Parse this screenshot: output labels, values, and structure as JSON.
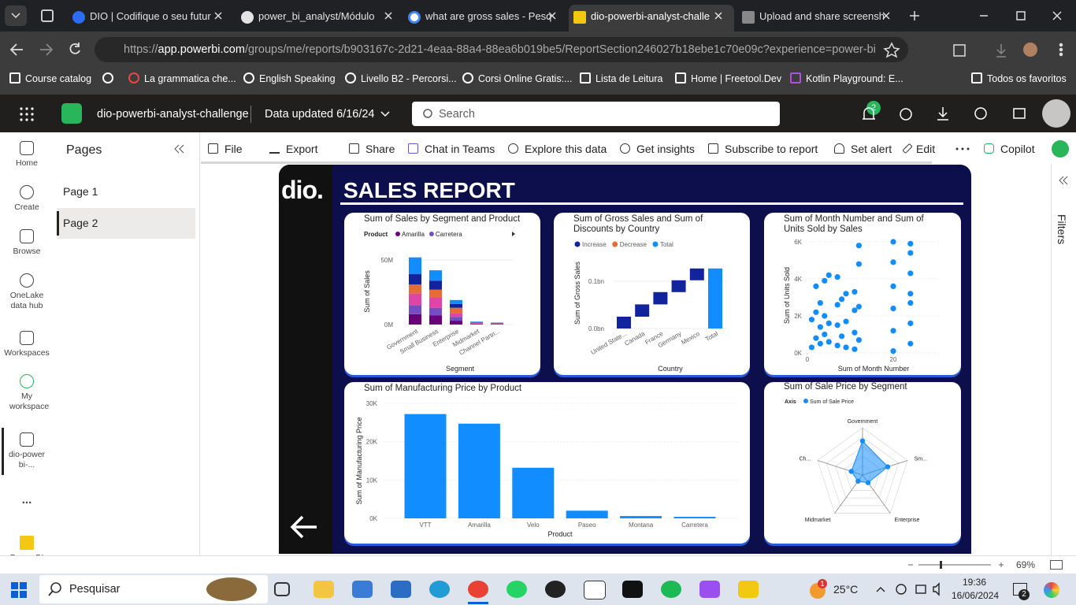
{
  "browser": {
    "tabs": [
      "DIO | Codifique o seu futur",
      "power_bi_analyst/Módulo",
      "what are gross sales - Pesq",
      "dio-powerbi-analyst-challe",
      "Upload and share screensh"
    ],
    "url_scheme": "https://",
    "url_host": "app.powerbi.com",
    "url_path": "/groups/me/reports/b903167c-2d21-4eaa-88a4-88ea6b019be5/ReportSection246027b18ebe1c70e09c?experience=power-bi",
    "bookmarks": [
      "Course catalog",
      "La grammatica che...",
      "English Speaking",
      "Livello B2 - Percorsi...",
      "Corsi Online Gratis:...",
      "Lista de Leitura",
      "Home | Freetool.Dev",
      "Kotlin Playground: E...",
      "Todos os favoritos"
    ]
  },
  "app": {
    "workspace": "dio-powerbi-analyst-challenge",
    "data_updated": "Data updated 6/16/24",
    "search_placeholder": "Search",
    "notification_count": "2"
  },
  "nav": [
    "Home",
    "Create",
    "Browse",
    "OneLake data hub",
    "Workspaces",
    "My workspace",
    "dio-powerbi-...",
    "...",
    "Power BI"
  ],
  "pages": {
    "title": "Pages",
    "items": [
      "Page 1",
      "Page 2"
    ]
  },
  "toolbar": [
    "File",
    "Export",
    "Share",
    "Chat in Teams",
    "Explore this data",
    "Get insights",
    "Subscribe to report",
    "Set alert",
    "Edit",
    "Copilot"
  ],
  "report": {
    "logo": "dio.",
    "title": "SALES REPORT",
    "charts": [
      {
        "type": "ribbon",
        "title": "Sum of Sales by Segment and Product",
        "legend_title": "Product",
        "y_label": "Sum of Sales",
        "x_label": "Segment",
        "categories": [
          "Government",
          "Small Business",
          "Enterprise",
          "Midmarket",
          "Channel Partn..."
        ],
        "ylim": [
          0,
          55000000
        ],
        "yticks": [
          {
            "value": 0,
            "label": "0M"
          },
          {
            "value": 50000000,
            "label": "50M"
          }
        ],
        "series": [
          {
            "name": "Amarilla",
            "color": "#6b007b",
            "values": [
              8000000,
              7000000,
              3000000,
              400000,
              300000
            ]
          },
          {
            "name": "Carretera",
            "color": "#744ec2",
            "values": [
              7000000,
              6000000,
              3000000,
              300000,
              200000
            ]
          },
          {
            "color": "#e044a7",
            "values": [
              9000000,
              8000000,
              3000000,
              500000,
              300000
            ]
          },
          {
            "color": "#e66c37",
            "values": [
              7000000,
              6000000,
              4000000,
              400000,
              200000
            ]
          },
          {
            "color": "#12239e",
            "values": [
              8000000,
              7000000,
              3000000,
              300000,
              300000
            ]
          },
          {
            "color": "#118dff",
            "values": [
              13000000,
              8000000,
              3000000,
              400000,
              300000
            ]
          }
        ]
      },
      {
        "type": "waterfall",
        "title": "Sum of Gross Sales and Sum of Discounts by Country",
        "y_label": "Sum of Gross Sales",
        "x_label": "Country",
        "legend": [
          {
            "name": "Increase",
            "color": "#12239e"
          },
          {
            "name": "Decrease",
            "color": "#e66c37"
          },
          {
            "name": "Total",
            "color": "#118dff"
          }
        ],
        "categories": [
          "United State...",
          "Canada",
          "France",
          "Germany",
          "Mexico",
          "Total"
        ],
        "values": [
          0.025,
          0.026,
          0.026,
          0.025,
          0.025,
          0.127
        ],
        "ylim": [
          0,
          0.13
        ],
        "yticks": [
          {
            "value": 0,
            "label": "0.0bn"
          },
          {
            "value": 0.1,
            "label": "0.1bn"
          }
        ]
      },
      {
        "type": "scatter",
        "title": "Sum of Month Number and Sum of Units Sold by Sales",
        "x_label": "Sum of Month Number",
        "y_label": "Sum of Units Sold",
        "color": "#118dff",
        "xlim": [
          0,
          30
        ],
        "xticks": [
          0,
          20
        ],
        "ylim": [
          0,
          6000
        ],
        "yticks": [
          {
            "value": 0,
            "label": "0K"
          },
          {
            "value": 2000,
            "label": "2K"
          },
          {
            "value": 4000,
            "label": "4K"
          },
          {
            "value": 6000,
            "label": "6K"
          }
        ],
        "x": [
          1,
          1,
          2,
          2,
          2,
          3,
          3,
          3,
          4,
          4,
          4,
          5,
          5,
          5,
          7,
          7,
          7,
          7,
          8,
          8,
          9,
          9,
          9,
          11,
          11,
          11,
          11,
          12,
          12,
          12,
          12,
          20,
          20,
          20,
          20,
          20,
          20,
          24,
          24,
          24,
          24,
          24,
          24,
          24
        ],
        "y": [
          300,
          1800,
          800,
          2200,
          3600,
          500,
          1400,
          2700,
          1000,
          2000,
          3900,
          600,
          1600,
          4200,
          400,
          1500,
          2600,
          4100,
          900,
          2900,
          300,
          1700,
          3200,
          200,
          1100,
          2300,
          3300,
          700,
          2500,
          4800,
          5800,
          100,
          1200,
          2400,
          3600,
          4900,
          6000,
          500,
          1600,
          2700,
          3200,
          4300,
          5400,
          5900
        ]
      },
      {
        "type": "bar",
        "title": "Sum of Manufacturing Price by Product",
        "y_label": "Sum of Manufacturing Price",
        "x_label": "Product",
        "color": "#118dff",
        "categories": [
          "VTT",
          "Amarilla",
          "Velo",
          "Paseo",
          "Montana",
          "Carretera"
        ],
        "values": [
          27200,
          24700,
          13200,
          2000,
          600,
          400
        ],
        "ylim": [
          0,
          30000
        ],
        "yticks": [
          {
            "value": 0,
            "label": "0K"
          },
          {
            "value": 10000,
            "label": "10K"
          },
          {
            "value": 20000,
            "label": "20K"
          },
          {
            "value": 30000,
            "label": "30K"
          }
        ]
      },
      {
        "type": "radar",
        "title": "Sum of Sale Price by Segment",
        "legend_title": "Axis",
        "categories": [
          "Government",
          "Sm...",
          "Enterprise",
          "Midmarket",
          "Ch..."
        ],
        "rlim": [
          0,
          1000000
        ],
        "series": [
          {
            "name": "Sum of Sale Price",
            "color": "#118dff",
            "values": [
              720000,
              560000,
              200000,
              160000,
              250000
            ]
          }
        ]
      }
    ]
  },
  "filters": "Filters",
  "zoom": "69%",
  "taskbar": {
    "search": "Pesquisar",
    "weather_badge": "1",
    "temperature": "25°C",
    "time": "19:36",
    "date": "16/06/2024",
    "notification_count": "2"
  }
}
